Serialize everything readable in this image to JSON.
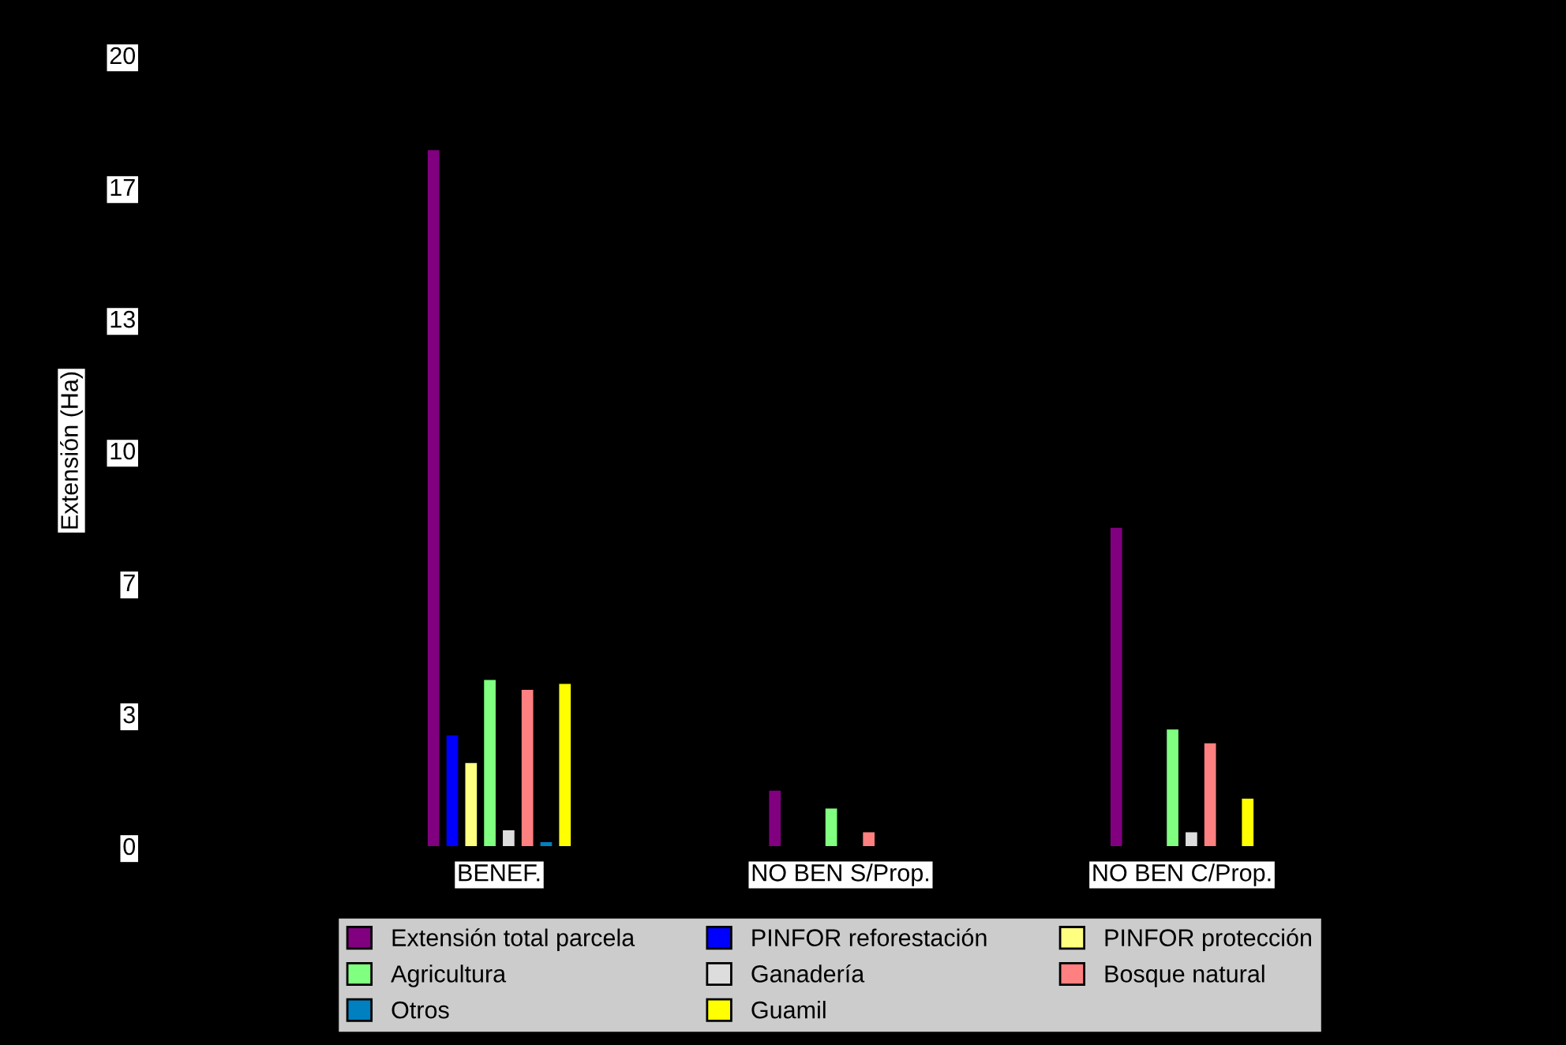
{
  "chart_data": {
    "type": "bar",
    "ylabel": "Extensión (Ha)",
    "categories": [
      "BENEF.",
      "NO BEN S/Prop.",
      "NO BEN C/Prop."
    ],
    "series": [
      {
        "name": "Extensión total parcela",
        "color": "#800080",
        "values": [
          17.6,
          1.4,
          8.05
        ]
      },
      {
        "name": "PINFOR reforestación",
        "color": "#0000ff",
        "values": [
          2.8,
          null,
          null
        ]
      },
      {
        "name": "PINFOR protección",
        "color": "#ffff80",
        "values": [
          2.1,
          null,
          null
        ]
      },
      {
        "name": "Agricultura",
        "color": "#80ff80",
        "values": [
          4.2,
          0.95,
          2.95
        ]
      },
      {
        "name": "Ganadería",
        "color": "#dddddd",
        "values": [
          0.4,
          null,
          0.35
        ]
      },
      {
        "name": "Bosque natural",
        "color": "#ff8080",
        "values": [
          3.95,
          0.35,
          2.6
        ]
      },
      {
        "name": "Otros",
        "color": "#0080c0",
        "values": [
          0.1,
          null,
          null
        ]
      },
      {
        "name": "Guamil",
        "color": "#ffff00",
        "values": [
          4.1,
          null,
          1.2
        ]
      }
    ],
    "ylim": [
      0,
      20
    ],
    "yticks": [
      0,
      {
        "value": 3.333,
        "label": "3"
      },
      {
        "value": 6.667,
        "label": "7"
      },
      10,
      {
        "value": 13.333,
        "label": "13"
      },
      {
        "value": 16.667,
        "label": "17"
      },
      20
    ],
    "grid": false,
    "legend": "bottom"
  }
}
